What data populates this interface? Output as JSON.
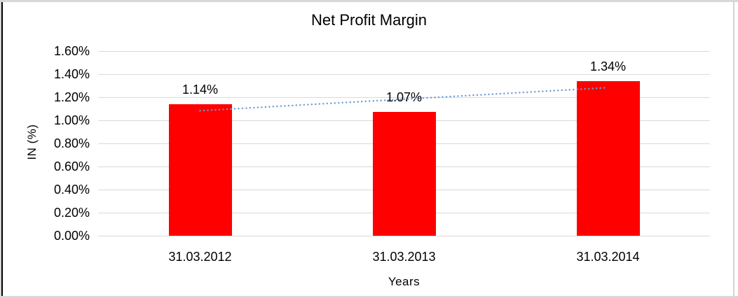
{
  "window": {
    "background": "#ffffff"
  },
  "chart_data": {
    "type": "bar",
    "title": "Net Profit Margin",
    "xlabel": "Years",
    "ylabel": "IN (%)",
    "categories": [
      "31.03.2012",
      "31.03.2013",
      "31.03.2014"
    ],
    "series": [
      {
        "name": "Net Profit Margin",
        "values": [
          1.14,
          1.07,
          1.34
        ]
      }
    ],
    "data_labels": [
      "1.14%",
      "1.07%",
      "1.34%"
    ],
    "ylim": [
      0,
      1.6
    ],
    "ytick_step": 0.2,
    "ytick_labels": [
      "0.00%",
      "0.20%",
      "0.40%",
      "0.60%",
      "0.80%",
      "1.00%",
      "1.20%",
      "1.40%",
      "1.60%"
    ],
    "grid": true,
    "legend": "none",
    "bar_color": "#ff0000",
    "gridline_color": "#d9d9d9",
    "text_color": "#000000",
    "trendline": {
      "type": "linear",
      "style": "dotted",
      "color": "#6b9bd2",
      "start_pct": 1.0833,
      "end_pct": 1.2833
    }
  }
}
